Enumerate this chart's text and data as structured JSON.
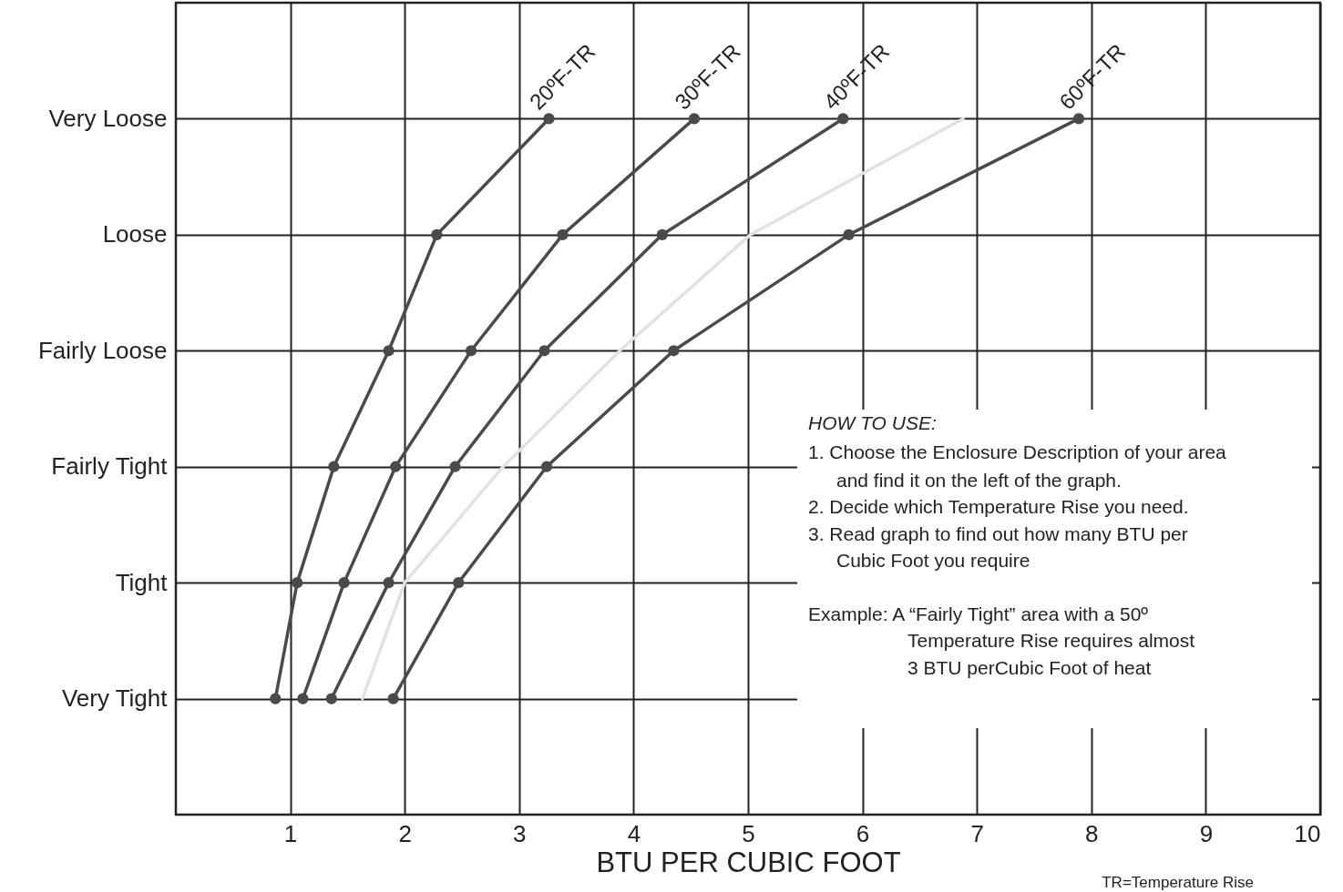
{
  "chart_data": {
    "type": "line",
    "xlabel": "BTU PER CUBIC FOOT",
    "categories": [
      "Very Loose",
      "Loose",
      "Fairly Loose",
      "Fairly Tight",
      "Tight",
      "Very Tight"
    ],
    "orientation": "horizontal",
    "xlim": [
      0,
      10
    ],
    "xticks": [
      1,
      2,
      3,
      4,
      5,
      6,
      7,
      8,
      9,
      10
    ],
    "grid": true,
    "marker": "circle",
    "series": [
      {
        "name": "20ºF-TR",
        "color": "#4a4a4a",
        "values": [
          3.26,
          2.28,
          1.86,
          1.38,
          1.06,
          0.87
        ]
      },
      {
        "name": "30ºF-TR",
        "color": "#4a4a4a",
        "values": [
          4.53,
          3.38,
          2.58,
          1.92,
          1.47,
          1.11
        ]
      },
      {
        "name": "40ºF-TR",
        "color": "#4a4a4a",
        "values": [
          5.83,
          4.25,
          3.22,
          2.44,
          1.86,
          1.36
        ]
      },
      {
        "color": "#e2e2e2",
        "marker": "none",
        "values": [
          6.88,
          5.02,
          3.88,
          2.86,
          2.0,
          1.63
        ]
      },
      {
        "name": "60ºF-TR",
        "color": "#4a4a4a",
        "values": [
          7.89,
          5.88,
          4.35,
          3.24,
          2.47,
          1.9
        ]
      }
    ],
    "annotations": [
      "HOW TO USE:",
      "1. Choose the Enclosure Description of your area",
      "and find it on the left of the graph.",
      "2. Decide which Temperature Rise you need.",
      "3. Read graph to find out how many BTU per",
      "Cubic Foot you require",
      "Example: A “Fairly Tight” area with a 50º",
      "Temperature Rise requires almost",
      "3 BTU perCubic Foot of heat",
      "TR=Temperature Rise"
    ]
  }
}
